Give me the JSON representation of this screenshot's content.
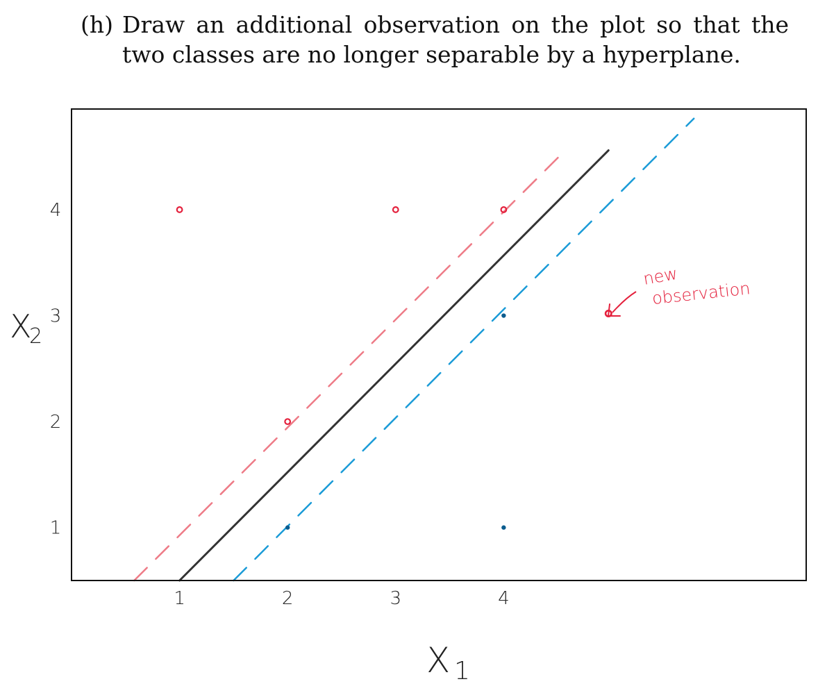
{
  "question": {
    "label": "(h)",
    "text": "Draw an additional observation on the plot so that the two classes are no longer separable by a hyperplane."
  },
  "chart_data": {
    "type": "scatter",
    "xlabel": "X1",
    "ylabel": "X2",
    "xlim": [
      0,
      6.8
    ],
    "ylim": [
      0.5,
      4.95
    ],
    "x_ticks": [
      "1",
      "2",
      "3",
      "4"
    ],
    "y_ticks": [
      "1",
      "2",
      "3",
      "4"
    ],
    "colors": {
      "red": "#e4203c",
      "blue": "#0b5c8e",
      "red_margin": "#ee7b87",
      "blue_margin": "#1a9bd7",
      "hyperplane": "#333333"
    },
    "series": [
      {
        "color": "red",
        "points": [
          [
            1,
            4
          ],
          [
            3,
            4
          ],
          [
            4,
            4
          ],
          [
            2,
            2
          ]
        ]
      },
      {
        "color": "blue",
        "points": [
          [
            2,
            1
          ],
          [
            4,
            1
          ],
          [
            4,
            3
          ]
        ]
      }
    ],
    "new_point": {
      "x": 4.97,
      "y": 3.02,
      "color": "red"
    },
    "lines": [
      {
        "name": "hyperplane",
        "style": "solid",
        "color": "hyperplane",
        "from": [
          1.0,
          0.5
        ],
        "to": [
          4.97,
          4.56
        ]
      },
      {
        "name": "red-margin",
        "style": "dashed",
        "color": "red_margin",
        "from": [
          0.58,
          0.5
        ],
        "to": [
          4.57,
          4.56
        ]
      },
      {
        "name": "blue-margin",
        "style": "dashed",
        "color": "blue_margin",
        "from": [
          1.5,
          0.5
        ],
        "to": [
          5.76,
          4.86
        ]
      }
    ],
    "annotation": {
      "line1": "new",
      "line2": "observation",
      "color": "red"
    }
  }
}
